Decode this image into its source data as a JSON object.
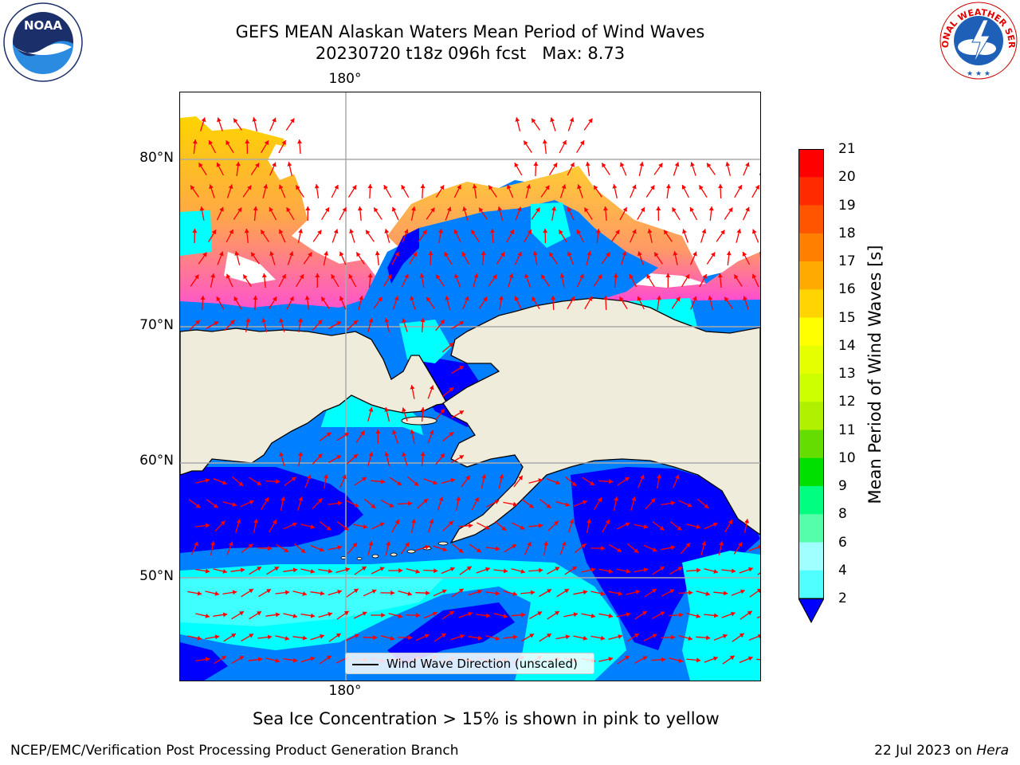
{
  "title": {
    "line1": "GEFS MEAN Alaskan Waters Mean Period of Wind Waves",
    "line2": "20230720 t18z 096h fcst   Max: 8.73"
  },
  "logos": {
    "left": "noaa-logo",
    "right": "nws-logo",
    "noaa_text": "NOAA",
    "nws_ring_text": "NATIONAL WEATHER SERVICE"
  },
  "map": {
    "lon_label_top": "180°",
    "lon_label_bottom": "180°",
    "lat_labels": [
      "80°N",
      "70°N",
      "60°N",
      "50°N"
    ],
    "land_color": "#efecdc",
    "arrow_color": "#ff0000",
    "legend_label": "Wind Wave Direction (unscaled)"
  },
  "colorbar": {
    "label": "Mean Period of Wind Waves [s]",
    "ticks": [
      "21",
      "20",
      "19",
      "18",
      "17",
      "16",
      "15",
      "14",
      "13",
      "12",
      "11",
      "10",
      "9",
      "8",
      "6",
      "4",
      "2"
    ],
    "colors": [
      "#ff0000",
      "#ff2a00",
      "#ff5500",
      "#ff8000",
      "#ffaa00",
      "#ffd400",
      "#ffff00",
      "#e6ff00",
      "#cdff00",
      "#b0f000",
      "#66dd00",
      "#00e000",
      "#00ff80",
      "#55ffaa",
      "#a0ffff",
      "#50ffff",
      "#00ffff",
      "#0080ff"
    ],
    "under_color": "#0000ff"
  },
  "caption": "Sea Ice Concentration > 15% is shown in pink to yellow",
  "footer": {
    "left": "NCEP/EMC/Verification Post Processing Product Generation Branch",
    "right_date": "22 Jul 2023 on ",
    "right_machine": "Hera"
  }
}
